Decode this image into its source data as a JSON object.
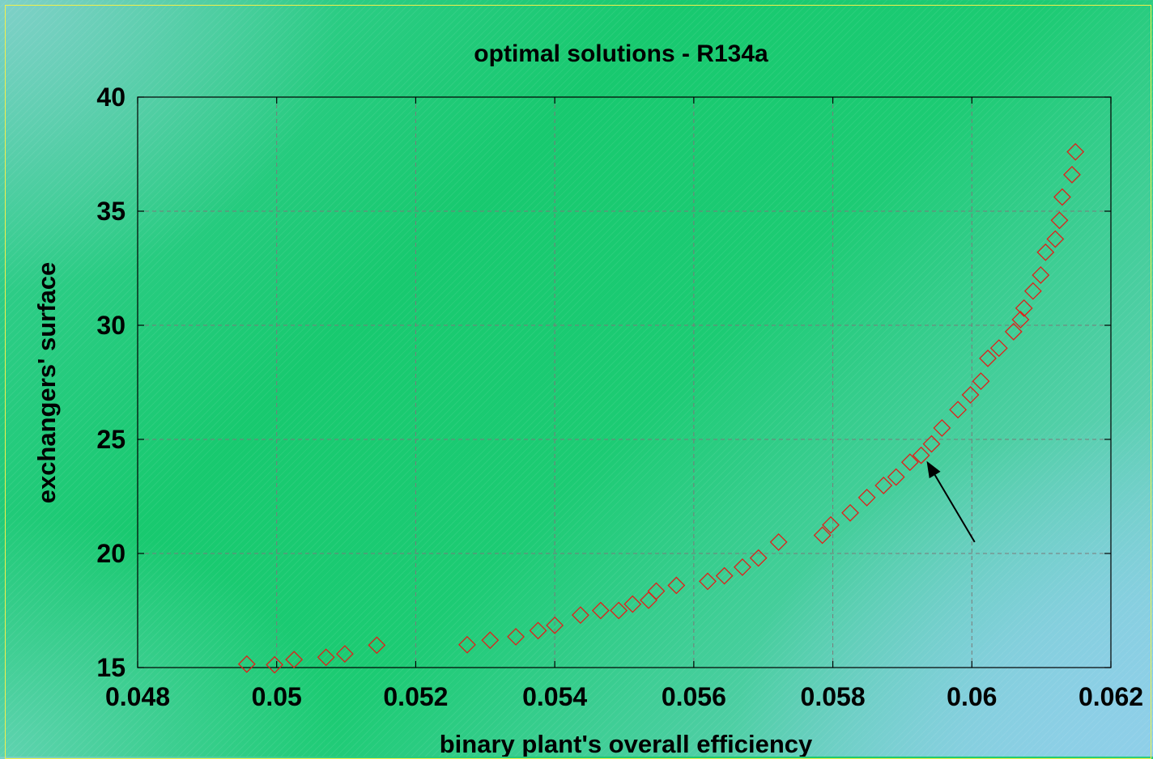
{
  "chart_data": {
    "type": "scatter",
    "title": "optimal solutions - R134a",
    "xlabel": "binary plant's overall efficiency",
    "ylabel": "exchangers' surface",
    "xlim": [
      0.048,
      0.062
    ],
    "ylim": [
      15,
      40
    ],
    "xticks": [
      "0.048",
      "0.05",
      "0.052",
      "0.054",
      "0.056",
      "0.058",
      "0.06",
      "0.062"
    ],
    "yticks": [
      "15",
      "20",
      "25",
      "30",
      "35",
      "40"
    ],
    "grid": true,
    "marker": "diamond",
    "marker_color": "#e0201a",
    "annotation": "arrow pointing to point near (0.0593, 24.3)",
    "points": [
      [
        0.04957,
        15.15
      ],
      [
        0.04997,
        15.12
      ],
      [
        0.05025,
        15.35
      ],
      [
        0.05071,
        15.45
      ],
      [
        0.05098,
        15.6
      ],
      [
        0.05144,
        15.98
      ],
      [
        0.05274,
        16.0
      ],
      [
        0.05307,
        16.2
      ],
      [
        0.05344,
        16.35
      ],
      [
        0.05376,
        16.62
      ],
      [
        0.054,
        16.85
      ],
      [
        0.05437,
        17.3
      ],
      [
        0.05466,
        17.5
      ],
      [
        0.05492,
        17.5
      ],
      [
        0.05512,
        17.78
      ],
      [
        0.05535,
        17.95
      ],
      [
        0.05546,
        18.35
      ],
      [
        0.05575,
        18.6
      ],
      [
        0.0562,
        18.78
      ],
      [
        0.05644,
        19.02
      ],
      [
        0.0567,
        19.4
      ],
      [
        0.05693,
        19.8
      ],
      [
        0.05722,
        20.5
      ],
      [
        0.05785,
        20.8
      ],
      [
        0.05797,
        21.25
      ],
      [
        0.05825,
        21.78
      ],
      [
        0.05849,
        22.45
      ],
      [
        0.05873,
        22.98
      ],
      [
        0.05891,
        23.35
      ],
      [
        0.05911,
        24.0
      ],
      [
        0.05927,
        24.3
      ],
      [
        0.05942,
        24.8
      ],
      [
        0.05957,
        25.5
      ],
      [
        0.0598,
        26.3
      ],
      [
        0.05998,
        26.95
      ],
      [
        0.06013,
        27.55
      ],
      [
        0.06023,
        28.55
      ],
      [
        0.06039,
        29.0
      ],
      [
        0.0606,
        29.72
      ],
      [
        0.0607,
        30.25
      ],
      [
        0.06075,
        30.75
      ],
      [
        0.06088,
        31.5
      ],
      [
        0.06099,
        32.2
      ],
      [
        0.06106,
        33.2
      ],
      [
        0.0612,
        33.78
      ],
      [
        0.06126,
        34.6
      ],
      [
        0.0613,
        35.62
      ],
      [
        0.06144,
        36.6
      ],
      [
        0.06149,
        37.6
      ]
    ]
  }
}
